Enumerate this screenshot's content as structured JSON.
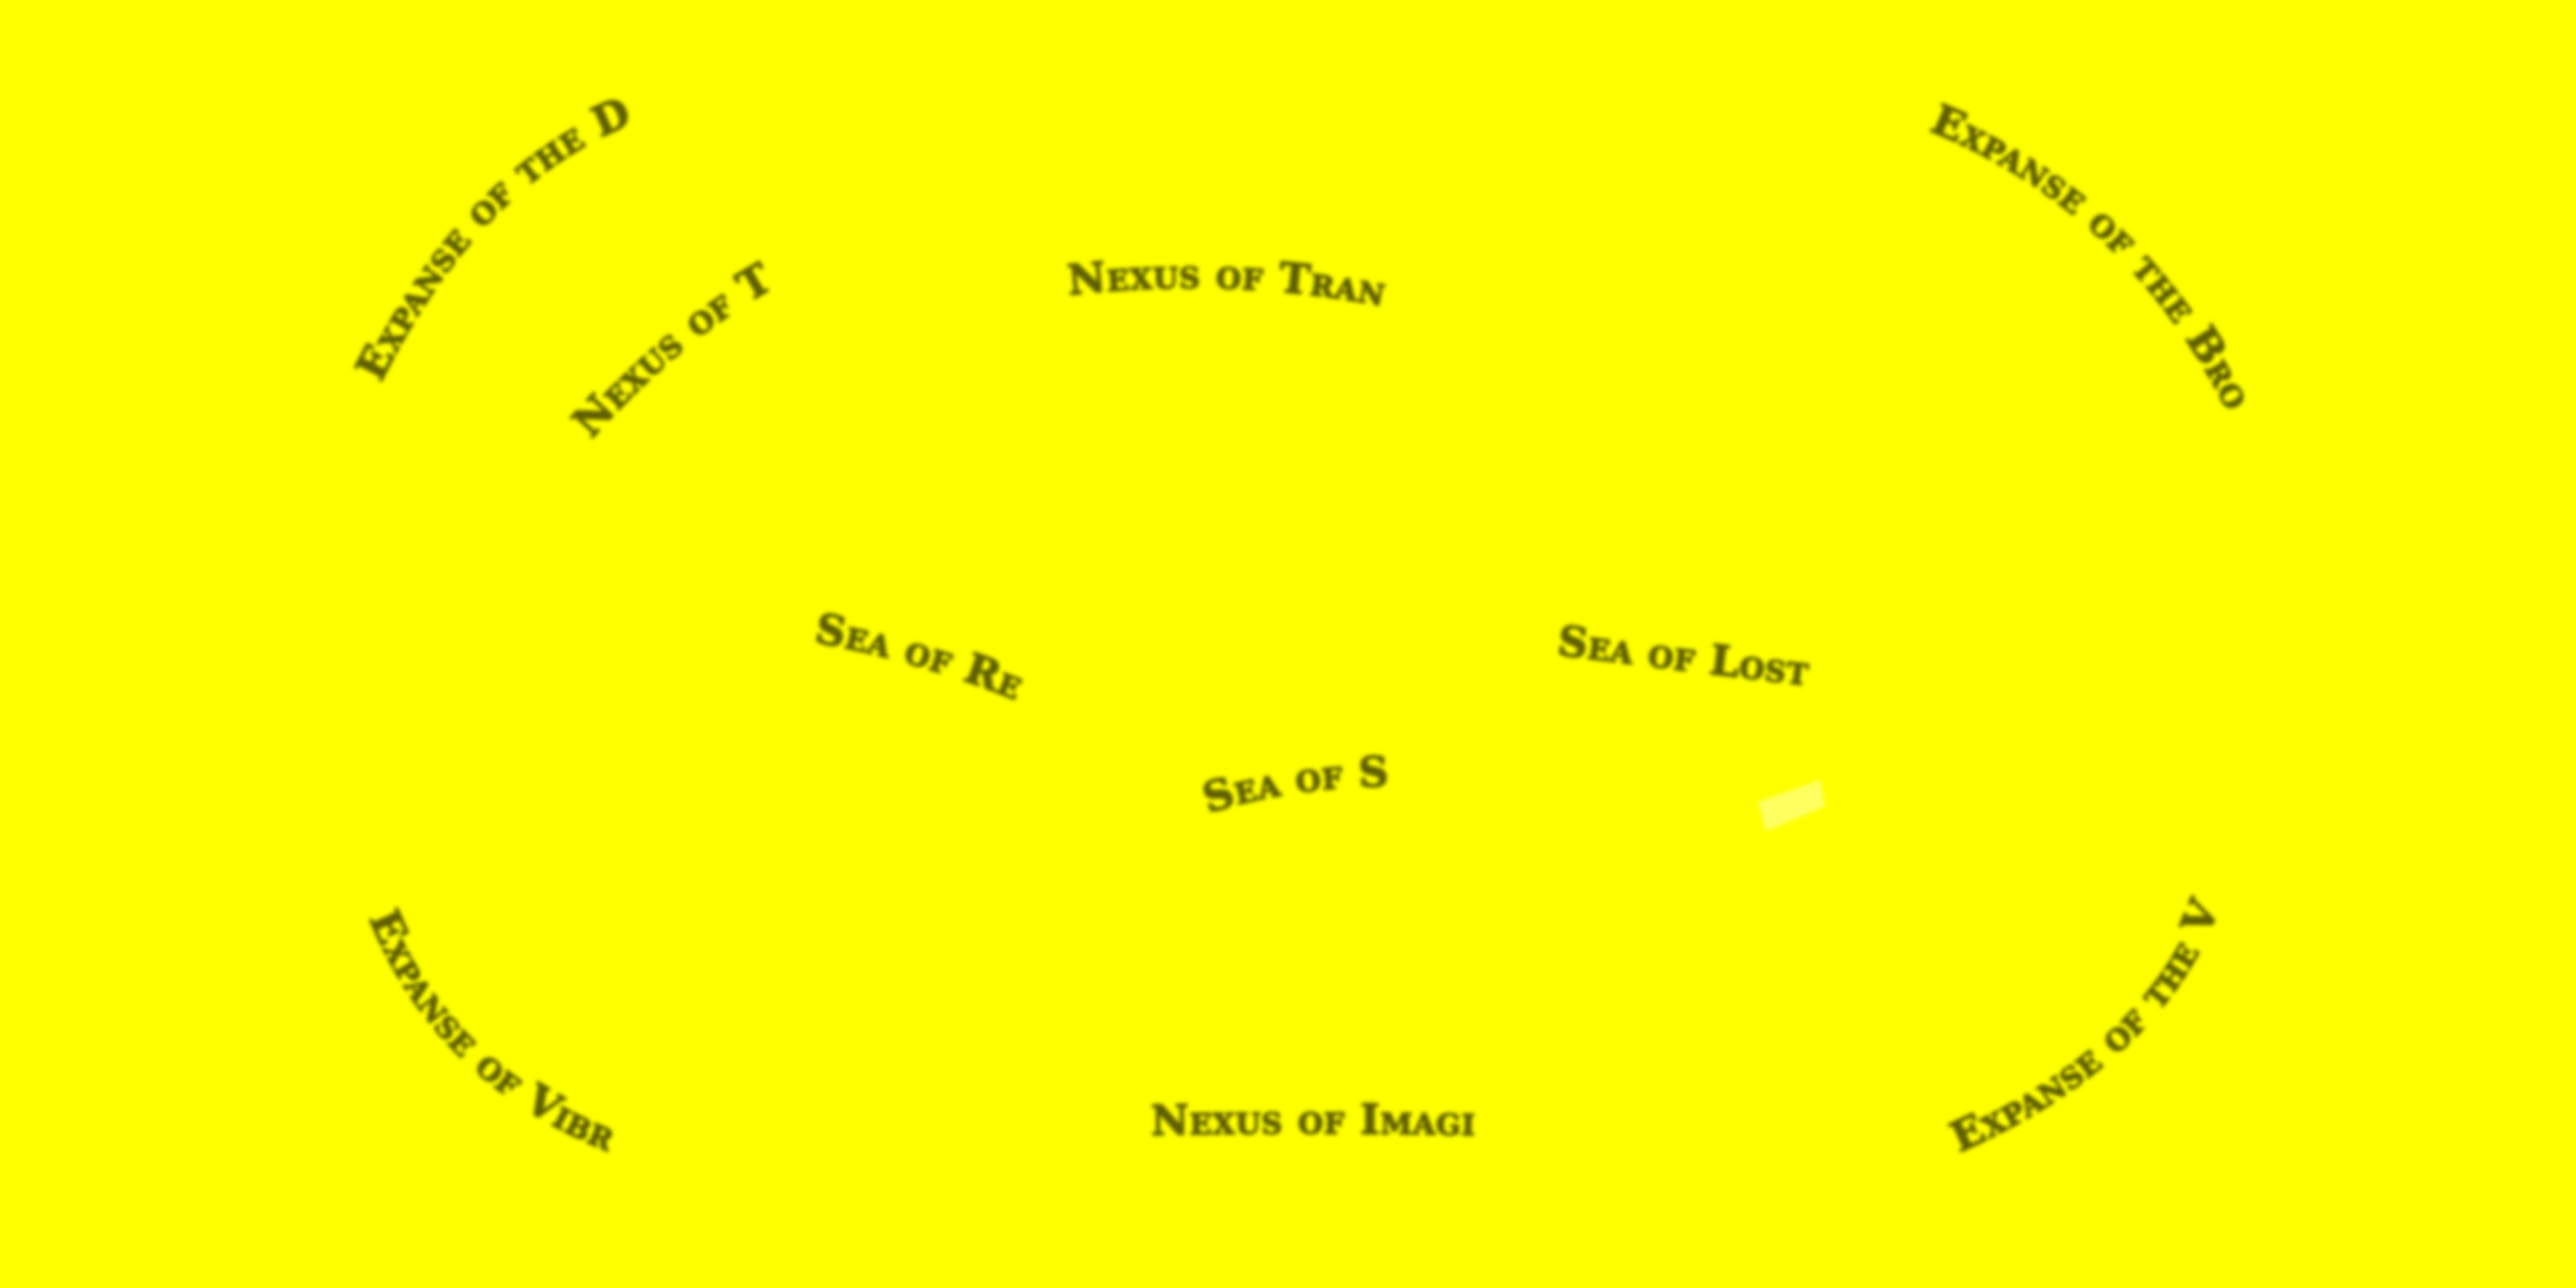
{
  "map": {
    "background_color": "#ffff00",
    "label_color": "#5e5e00",
    "regions": {
      "expanse_densities": "Expanse of the Densities",
      "nexus_truth": "Nexus of Truth",
      "nexus_transition": "Nexus of Transition",
      "expanse_broken_sky": "Expanse of the Broken Sky",
      "sea_regret": "Sea of Regret",
      "sea_lost_lights": "Sea of Lost Lights",
      "sea_souls": "Sea of Souls",
      "expanse_vibrance": "Expanse of Vibrance",
      "nexus_imagination": "Nexus of Imagination",
      "expanse_vapors": "Expanse of the Vapors"
    }
  }
}
